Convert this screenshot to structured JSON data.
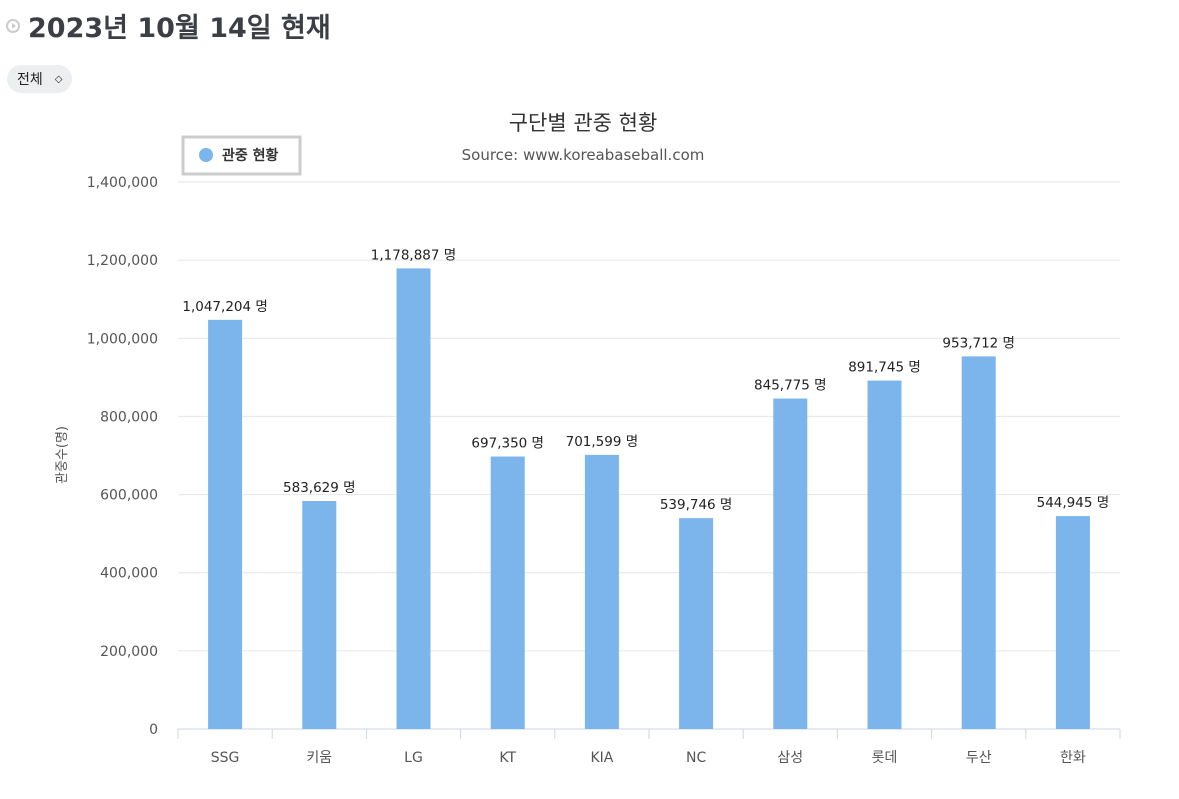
{
  "header": {
    "title": "2023년 10월 14일 현재",
    "icon": "play-circle-icon"
  },
  "filter": {
    "selected": "전체",
    "icon": "chevron-updown-icon"
  },
  "chart_data": {
    "type": "bar",
    "title": "구단별 관중 현황",
    "subtitle": "Source: www.koreabaseball.com",
    "ylabel": "관중수(명)",
    "xlabel": "",
    "ylim": [
      0,
      1400000
    ],
    "yticks": [
      "0",
      "200,000",
      "400,000",
      "600,000",
      "800,000",
      "1,000,000",
      "1,200,000",
      "1,400,000"
    ],
    "grid": true,
    "legend_position": "top-left",
    "color": "#7cb5ec",
    "categories": [
      "SSG",
      "키움",
      "LG",
      "KT",
      "KIA",
      "NC",
      "삼성",
      "롯데",
      "두산",
      "한화"
    ],
    "series": [
      {
        "name": "관중 현황",
        "values": [
          1047204,
          583629,
          1178887,
          697350,
          701599,
          539746,
          845775,
          891745,
          953712,
          544945
        ]
      }
    ],
    "data_labels": [
      "1,047,204 명",
      "583,629 명",
      "1,178,887 명",
      "697,350 명",
      "701,599 명",
      "539,746 명",
      "845,775 명",
      "891,745 명",
      "953,712 명",
      "544,945 명"
    ]
  }
}
